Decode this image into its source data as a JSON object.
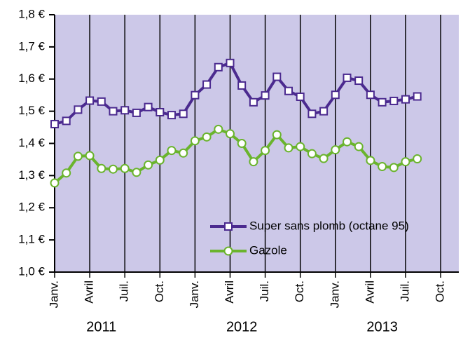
{
  "chart_data": {
    "type": "line",
    "categories": [
      "Janv.",
      null,
      null,
      "Avril",
      null,
      null,
      "Juil.",
      null,
      null,
      "Oct.",
      null,
      null,
      "Janv.",
      null,
      null,
      "Avril",
      null,
      null,
      "Juil.",
      null,
      null,
      "Oct.",
      null,
      null,
      "Janv.",
      null,
      null,
      "Avril",
      null,
      null,
      "Juil.",
      null,
      null,
      "Oct.",
      null
    ],
    "x_groups": [
      "2011",
      "2012",
      "2013"
    ],
    "series": [
      {
        "name": "Super sans plomb (octane 95)",
        "color": "#4b2a8f",
        "marker": "square",
        "values": [
          1.46,
          1.47,
          1.505,
          1.533,
          1.53,
          1.5,
          1.503,
          1.495,
          1.513,
          1.497,
          1.488,
          1.492,
          1.55,
          1.583,
          1.637,
          1.65,
          1.58,
          1.528,
          1.549,
          1.607,
          1.563,
          1.545,
          1.492,
          1.5,
          1.551,
          1.604,
          1.595,
          1.551,
          1.528,
          1.532,
          1.537,
          1.546,
          null,
          null,
          null
        ]
      },
      {
        "name": "Gazole",
        "color": "#6ab42d",
        "marker": "circle",
        "values": [
          1.277,
          1.308,
          1.36,
          1.362,
          1.322,
          1.32,
          1.322,
          1.31,
          1.333,
          1.348,
          1.378,
          1.37,
          1.408,
          1.42,
          1.444,
          1.43,
          1.4,
          1.343,
          1.378,
          1.427,
          1.386,
          1.39,
          1.368,
          1.353,
          1.38,
          1.405,
          1.39,
          1.347,
          1.328,
          1.325,
          1.343,
          1.352,
          null,
          null,
          null
        ]
      }
    ],
    "ylim": [
      1.0,
      1.8
    ],
    "yticks": [
      {
        "value": 1.0,
        "label": "1,0 €"
      },
      {
        "value": 1.1,
        "label": "1,1 €"
      },
      {
        "value": 1.2,
        "label": "1,2 €"
      },
      {
        "value": 1.3,
        "label": "1,3 €"
      },
      {
        "value": 1.4,
        "label": "1,4 €"
      },
      {
        "value": 1.5,
        "label": "1,5 €"
      },
      {
        "value": 1.6,
        "label": "1,6 €"
      },
      {
        "value": 1.7,
        "label": "1,7 €"
      },
      {
        "value": 1.8,
        "label": "1,8 €"
      }
    ],
    "background": "#ccc8e8",
    "legend": "lower right"
  }
}
